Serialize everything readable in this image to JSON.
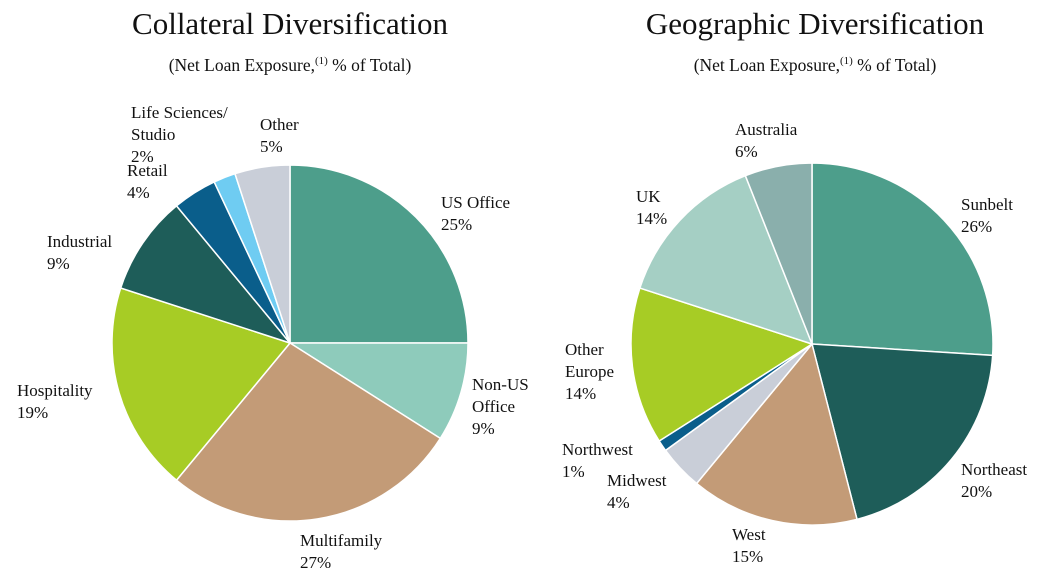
{
  "chart_data": [
    {
      "type": "pie",
      "title": "Collateral Diversification",
      "subtitle": {
        "text": "(Net Loan Exposure,",
        "sup": "(1)",
        "after": " % of Total)"
      },
      "slices": [
        {
          "label": [
            "US Office"
          ],
          "value": 25,
          "display": "25%",
          "color": "#4d9e8b"
        },
        {
          "label": [
            "Non-US",
            "Office"
          ],
          "value": 9,
          "display": "9%",
          "color": "#8ecbbb"
        },
        {
          "label": [
            "Multifamily"
          ],
          "value": 27,
          "display": "27%",
          "color": "#c39b77"
        },
        {
          "label": [
            "Hospitality"
          ],
          "value": 19,
          "display": "19%",
          "color": "#a7cc25"
        },
        {
          "label": [
            "Industrial"
          ],
          "value": 9,
          "display": "9%",
          "color": "#1e5d59"
        },
        {
          "label": [
            "Retail"
          ],
          "value": 4,
          "display": "4%",
          "color": "#0a5e8b"
        },
        {
          "label": [
            "Life Sciences/",
            "Studio"
          ],
          "value": 2,
          "display": "2%",
          "color": "#6fccf2"
        },
        {
          "label": [
            "Other"
          ],
          "value": 5,
          "display": "5%",
          "color": "#c9ced8"
        }
      ]
    },
    {
      "type": "pie",
      "title": "Geographic Diversification",
      "subtitle": {
        "text": "(Net Loan Exposure,",
        "sup": "(1)",
        "after": " % of Total)"
      },
      "slices": [
        {
          "label": [
            "Sunbelt"
          ],
          "value": 26,
          "display": "26%",
          "color": "#4d9e8b"
        },
        {
          "label": [
            "Northeast"
          ],
          "value": 20,
          "display": "20%",
          "color": "#1e5d59"
        },
        {
          "label": [
            "West"
          ],
          "value": 15,
          "display": "15%",
          "color": "#c39b77"
        },
        {
          "label": [
            "Midwest"
          ],
          "value": 4,
          "display": "4%",
          "color": "#c9ced8"
        },
        {
          "label": [
            "Northwest"
          ],
          "value": 1,
          "display": "1%",
          "color": "#0a5e8b"
        },
        {
          "label": [
            "Other",
            "Europe"
          ],
          "value": 14,
          "display": "14%",
          "color": "#a7cc25"
        },
        {
          "label": [
            "UK"
          ],
          "value": 14,
          "display": "14%",
          "color": "#a5cfc4"
        },
        {
          "label": [
            "Australia"
          ],
          "value": 6,
          "display": "6%",
          "color": "#8aafac"
        }
      ]
    }
  ]
}
